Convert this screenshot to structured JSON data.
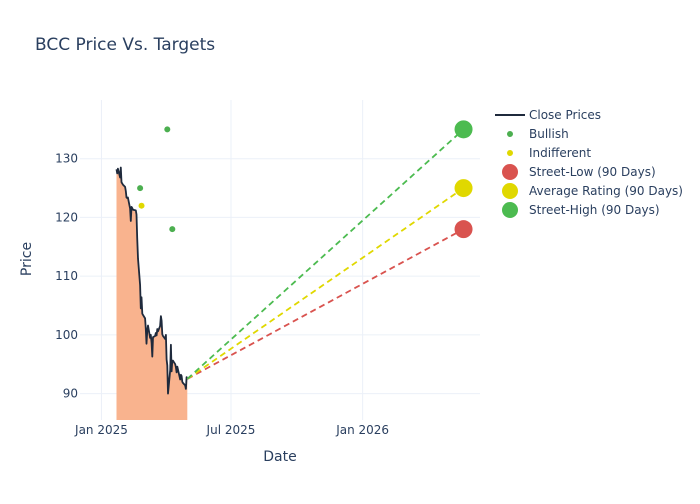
{
  "chart_data": {
    "type": "line",
    "title": "BCC Price Vs. Targets",
    "xlabel": "Date",
    "ylabel": "Price",
    "xlim": [
      "2024-12-02",
      "2026-06-14"
    ],
    "ylim": [
      85.5,
      140
    ],
    "x_ticks": [
      {
        "date": "2025-01-01",
        "label": "Jan 2025"
      },
      {
        "date": "2025-07-01",
        "label": "Jul 2025"
      },
      {
        "date": "2026-01-01",
        "label": "Jan 2026"
      }
    ],
    "y_ticks": [
      90,
      100,
      110,
      120,
      130
    ],
    "grid": true,
    "legend_position": "top-right",
    "colors": {
      "close": "#1f2a3c",
      "fill": "#f9b38e",
      "bullish": "#4caf50",
      "indifferent": "#e0d800",
      "low": "#d9534f",
      "avg": "#e0d800",
      "high": "#4cbb50"
    },
    "legend": [
      {
        "key": "close",
        "label": "Close Prices",
        "symbol": "line"
      },
      {
        "key": "bullish",
        "label": "Bullish",
        "symbol": "small-dot"
      },
      {
        "key": "indifferent",
        "label": "Indifferent",
        "symbol": "small-dot"
      },
      {
        "key": "low",
        "label": "Street-Low (90 Days)",
        "symbol": "big-dot"
      },
      {
        "key": "avg",
        "label": "Average Rating (90 Days)",
        "symbol": "big-dot"
      },
      {
        "key": "high",
        "label": "Street-High (90 Days)",
        "symbol": "big-dot"
      }
    ],
    "close_prices": {
      "x": [
        "2025-01-22",
        "2025-01-23",
        "2025-01-24",
        "2025-01-27",
        "2025-01-28",
        "2025-01-29",
        "2025-01-30",
        "2025-01-31",
        "2025-02-03",
        "2025-02-04",
        "2025-02-05",
        "2025-02-06",
        "2025-02-07",
        "2025-02-10",
        "2025-02-11",
        "2025-02-12",
        "2025-02-13",
        "2025-02-14",
        "2025-02-18",
        "2025-02-19",
        "2025-02-20",
        "2025-02-21",
        "2025-02-24",
        "2025-02-25",
        "2025-02-26",
        "2025-02-27",
        "2025-02-28",
        "2025-03-03",
        "2025-03-04",
        "2025-03-05",
        "2025-03-06",
        "2025-03-07",
        "2025-03-10",
        "2025-03-11",
        "2025-03-12",
        "2025-03-13",
        "2025-03-14",
        "2025-03-17",
        "2025-03-18",
        "2025-03-19",
        "2025-03-20",
        "2025-03-21",
        "2025-03-24",
        "2025-03-25",
        "2025-03-26",
        "2025-03-27",
        "2025-03-28",
        "2025-03-31",
        "2025-04-01",
        "2025-04-02",
        "2025-04-03",
        "2025-04-04",
        "2025-04-07",
        "2025-04-08",
        "2025-04-09",
        "2025-04-10",
        "2025-04-11",
        "2025-04-14",
        "2025-04-15",
        "2025-04-16",
        "2025-04-17",
        "2025-04-21",
        "2025-04-22",
        "2025-04-23",
        "2025-04-24",
        "2025-04-25",
        "2025-04-28",
        "2025-04-29",
        "2025-04-30",
        "2025-05-01"
      ],
      "y": [
        128.2,
        127.5,
        128.3,
        126.8,
        128.5,
        126.0,
        125.8,
        125.6,
        125.2,
        124.5,
        123.4,
        123.3,
        123.4,
        121.5,
        119.4,
        121.8,
        121.6,
        121.3,
        121.2,
        120.5,
        116.5,
        113.0,
        108.5,
        104.5,
        106.4,
        103.6,
        103.4,
        102.8,
        101.0,
        98.5,
        100.8,
        101.6,
        99.5,
        100.0,
        98.6,
        96.3,
        99.6,
        99.8,
        100.3,
        99.9,
        101.0,
        100.6,
        101.5,
        103.2,
        102.4,
        100.1,
        99.8,
        99.3,
        100.0,
        95.8,
        94.8,
        90.0,
        94.0,
        98.3,
        93.8,
        95.6,
        95.6,
        95.0,
        94.5,
        93.6,
        94.6,
        92.4,
        93.2,
        93.0,
        92.0,
        91.8,
        91.4,
        90.8,
        92.8,
        92.5
      ]
    },
    "bullish": [
      {
        "x": "2025-02-24",
        "y": 125
      },
      {
        "x": "2025-04-03",
        "y": 135
      },
      {
        "x": "2025-04-10",
        "y": 118
      }
    ],
    "indifferent": [
      {
        "x": "2025-02-26",
        "y": 122
      }
    ],
    "targets": {
      "start": {
        "x": "2025-05-01",
        "y": 92.5
      },
      "end_x": "2026-05-22",
      "low": 118,
      "avg": 125,
      "high": 135
    }
  }
}
